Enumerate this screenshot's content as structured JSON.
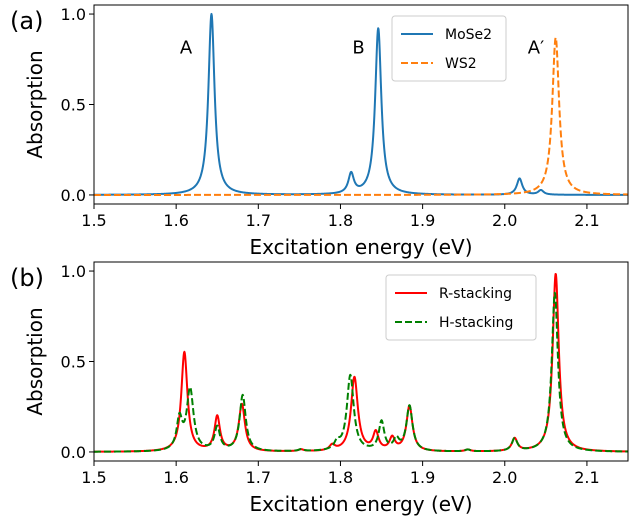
{
  "chart_data": [
    {
      "panel_label": "(a)",
      "type": "line",
      "xlabel": "Excitation energy (eV)",
      "ylabel": "Absorption",
      "xlim": [
        1.5,
        2.15
      ],
      "ylim": [
        -0.05,
        1.05
      ],
      "xticks": [
        1.5,
        1.6,
        1.7,
        1.8,
        1.9,
        2.0,
        2.1
      ],
      "xtick_labels": [
        "1.5",
        "1.6",
        "1.7",
        "1.8",
        "1.9",
        "2.0",
        "2.1"
      ],
      "yticks": [
        0.0,
        0.5,
        1.0
      ],
      "ytick_labels": [
        "0.0",
        "0.5",
        "1.0"
      ],
      "grid": false,
      "legend": "top-center",
      "annotations": [
        {
          "text": "A",
          "x": 1.612,
          "y": 0.82
        },
        {
          "text": "B",
          "x": 1.822,
          "y": 0.82
        },
        {
          "text": "A′",
          "x": 2.038,
          "y": 0.82
        }
      ],
      "series": [
        {
          "name": "MoSe2",
          "color": "#1f77b4",
          "style": "solid",
          "peaks": [
            {
              "x": 1.643,
              "amp": 1.0,
              "w": 0.0045
            },
            {
              "x": 1.813,
              "amp": 0.11,
              "w": 0.004
            },
            {
              "x": 1.846,
              "amp": 0.92,
              "w": 0.0045
            },
            {
              "x": 2.018,
              "amp": 0.09,
              "w": 0.004
            },
            {
              "x": 2.044,
              "amp": 0.025,
              "w": 0.004
            }
          ]
        },
        {
          "name": "WS2",
          "color": "#ff7f0e",
          "style": "dashed",
          "peaks": [
            {
              "x": 2.062,
              "amp": 0.87,
              "w": 0.005
            }
          ]
        }
      ]
    },
    {
      "panel_label": "(b)",
      "type": "line",
      "xlabel": "Excitation energy (eV)",
      "ylabel": "Absorption",
      "xlim": [
        1.5,
        2.15
      ],
      "ylim": [
        -0.05,
        1.05
      ],
      "xticks": [
        1.5,
        1.6,
        1.7,
        1.8,
        1.9,
        2.0,
        2.1
      ],
      "xtick_labels": [
        "1.5",
        "1.6",
        "1.7",
        "1.8",
        "1.9",
        "2.0",
        "2.1"
      ],
      "yticks": [
        0.0,
        0.5,
        1.0
      ],
      "ytick_labels": [
        "0.0",
        "0.5",
        "1.0"
      ],
      "grid": false,
      "legend": "top-center",
      "annotations": [],
      "series": [
        {
          "name": "R-stacking",
          "color": "#ff0000",
          "style": "solid",
          "peaks": [
            {
              "x": 1.61,
              "amp": 0.55,
              "w": 0.0045
            },
            {
              "x": 1.65,
              "amp": 0.19,
              "w": 0.004
            },
            {
              "x": 1.68,
              "amp": 0.26,
              "w": 0.0045
            },
            {
              "x": 1.752,
              "amp": 0.01,
              "w": 0.004
            },
            {
              "x": 1.79,
              "amp": 0.03,
              "w": 0.004
            },
            {
              "x": 1.817,
              "amp": 0.41,
              "w": 0.005
            },
            {
              "x": 1.843,
              "amp": 0.1,
              "w": 0.004
            },
            {
              "x": 1.863,
              "amp": 0.07,
              "w": 0.004
            },
            {
              "x": 1.884,
              "amp": 0.25,
              "w": 0.0045
            },
            {
              "x": 1.955,
              "amp": 0.01,
              "w": 0.004
            },
            {
              "x": 2.012,
              "amp": 0.07,
              "w": 0.004
            },
            {
              "x": 2.062,
              "amp": 0.985,
              "w": 0.0045
            }
          ]
        },
        {
          "name": "H-stacking",
          "color": "#008000",
          "style": "dashed",
          "peaks": [
            {
              "x": 1.604,
              "amp": 0.17,
              "w": 0.004
            },
            {
              "x": 1.617,
              "amp": 0.34,
              "w": 0.005
            },
            {
              "x": 1.65,
              "amp": 0.13,
              "w": 0.004
            },
            {
              "x": 1.681,
              "amp": 0.31,
              "w": 0.0045
            },
            {
              "x": 1.752,
              "amp": 0.01,
              "w": 0.004
            },
            {
              "x": 1.796,
              "amp": 0.04,
              "w": 0.004
            },
            {
              "x": 1.812,
              "amp": 0.42,
              "w": 0.005
            },
            {
              "x": 1.85,
              "amp": 0.16,
              "w": 0.004
            },
            {
              "x": 1.868,
              "amp": 0.06,
              "w": 0.004
            },
            {
              "x": 1.884,
              "amp": 0.25,
              "w": 0.0045
            },
            {
              "x": 1.955,
              "amp": 0.01,
              "w": 0.004
            },
            {
              "x": 2.012,
              "amp": 0.07,
              "w": 0.004
            },
            {
              "x": 2.061,
              "amp": 0.88,
              "w": 0.0045
            }
          ]
        }
      ]
    }
  ]
}
